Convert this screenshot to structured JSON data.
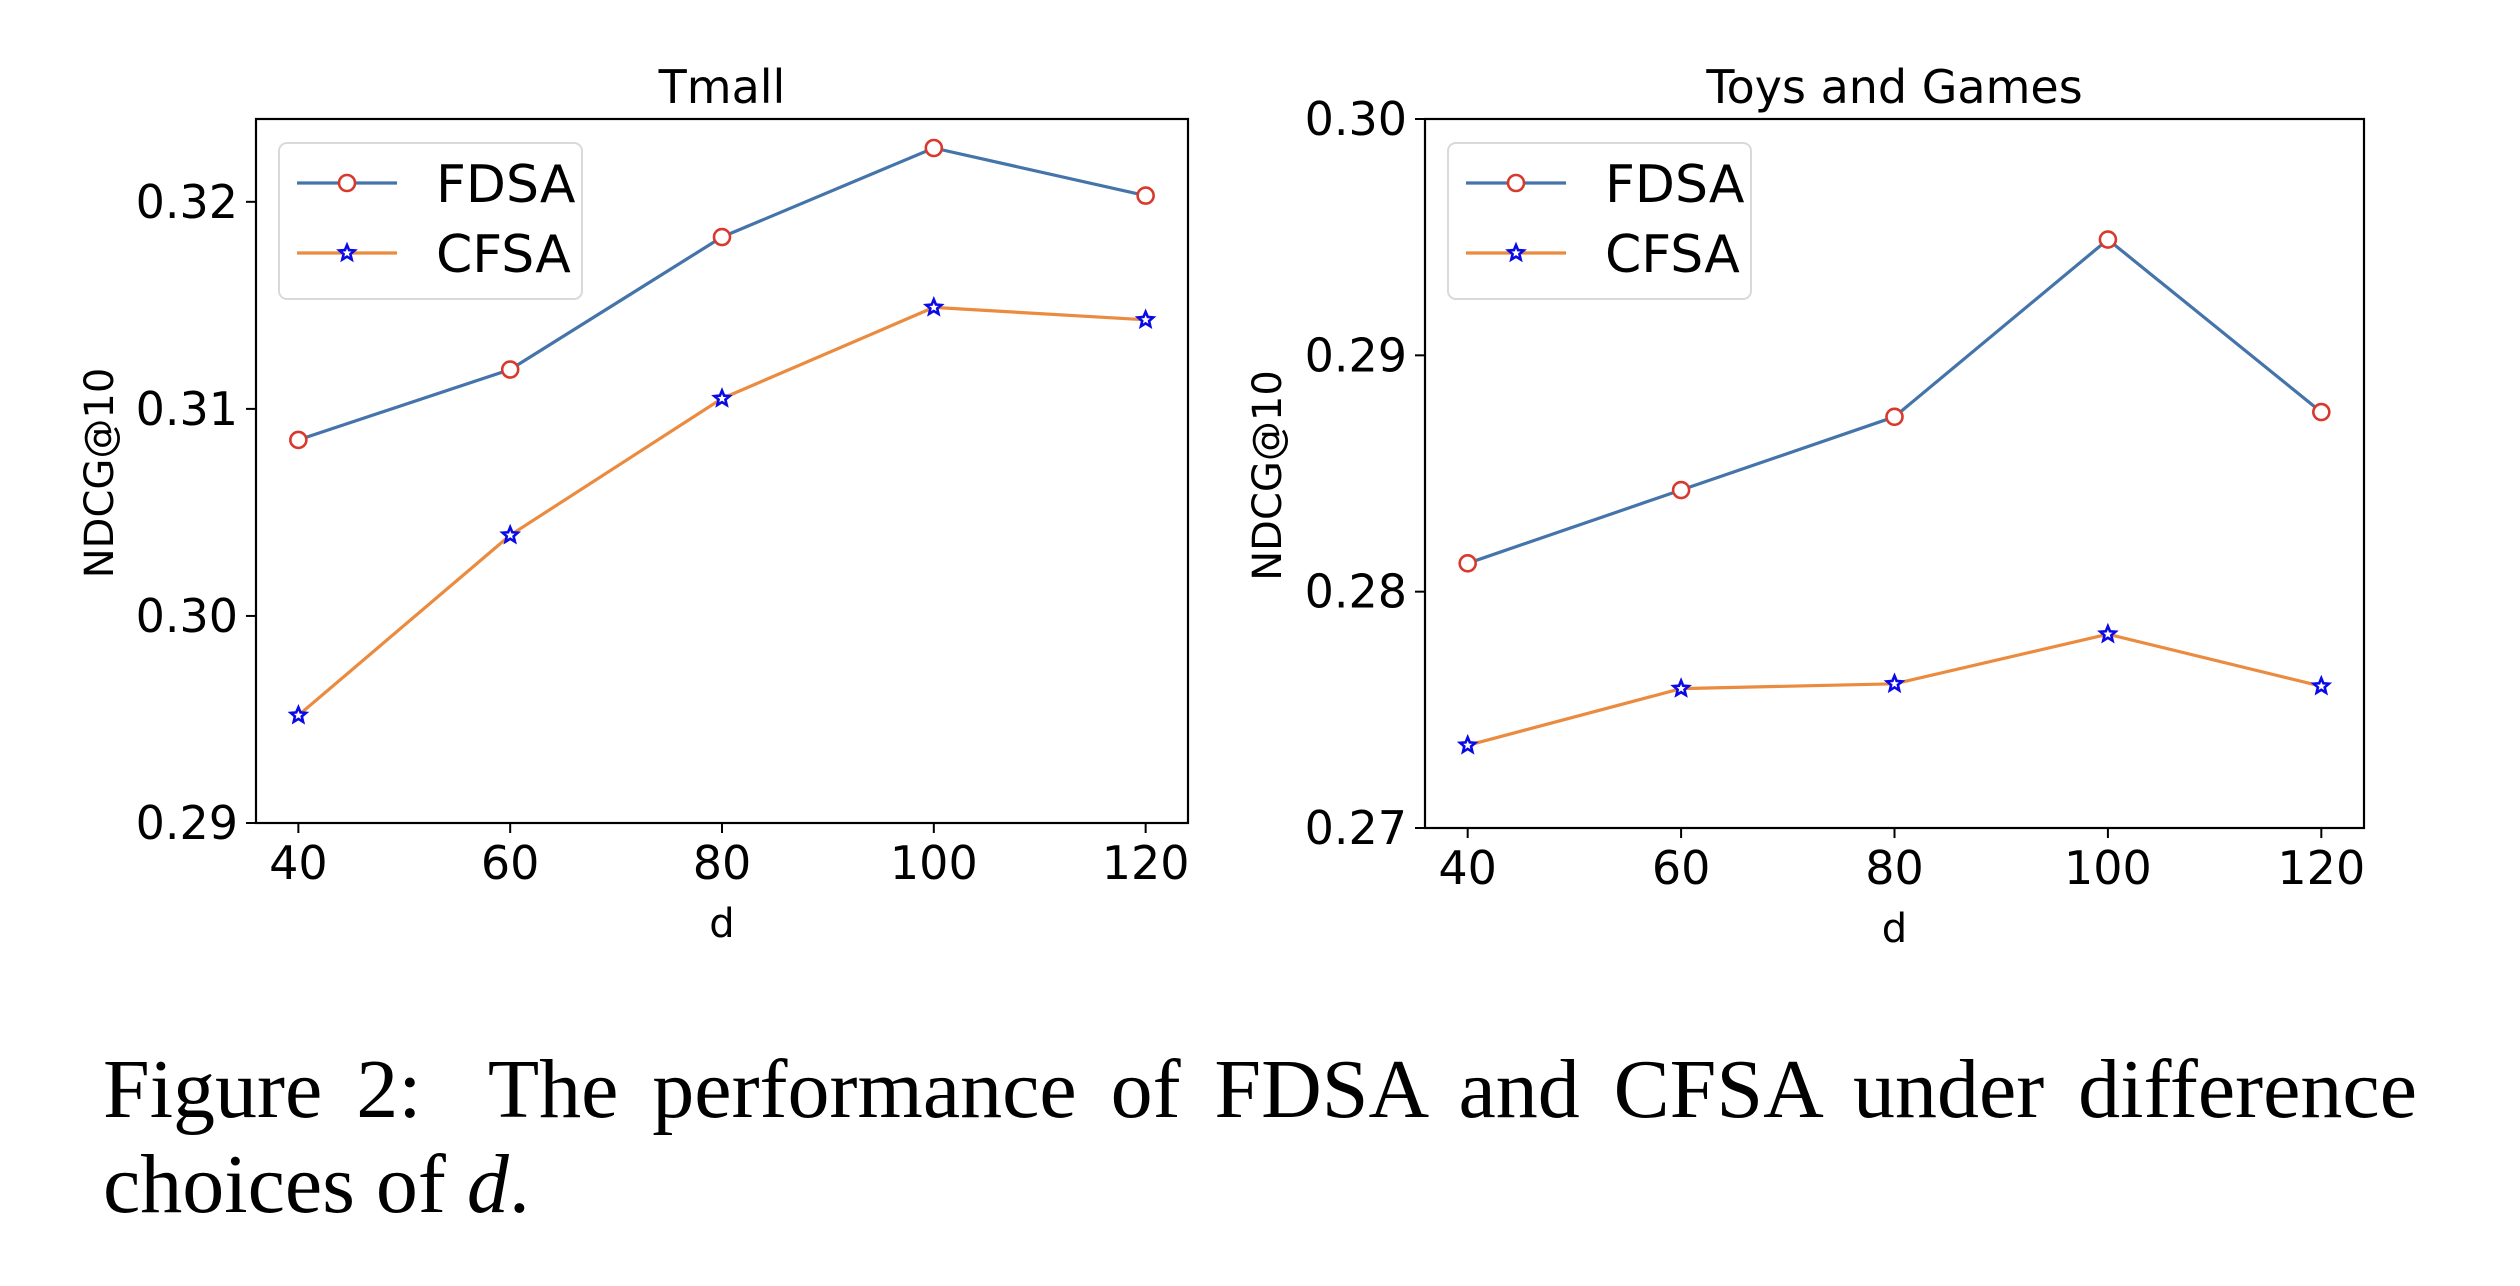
{
  "caption": {
    "prefix": "Figure 2:",
    "text": "The performance of FDSA and CFSA under difference choices of",
    "variable": "d",
    "suffix": "."
  },
  "colors": {
    "FDSA_line": "#4474a9",
    "FDSA_marker_edge": "#d9392c",
    "CFSA_line": "#ea8b3f",
    "CFSA_marker_edge": "#0a0ae6",
    "axes": "#000000",
    "legend_border": "#d9d9d9"
  },
  "chart_data": [
    {
      "type": "line",
      "title": "Tmall",
      "xlabel": "d",
      "ylabel": "NDCG@10",
      "x": [
        40,
        60,
        80,
        100,
        120
      ],
      "xticks": [
        "40",
        "60",
        "80",
        "100",
        "120"
      ],
      "yticks": [
        "0.29",
        "0.30",
        "0.31",
        "0.32"
      ],
      "ytick_values": [
        0.29,
        0.3,
        0.31,
        0.32
      ],
      "xlim": [
        36,
        124
      ],
      "ylim": [
        0.29,
        0.324
      ],
      "grid": false,
      "legend_position": "upper-left",
      "series": [
        {
          "name": "FDSA",
          "marker": "circle",
          "values": [
            0.3085,
            0.3119,
            0.3183,
            0.3226,
            0.3203
          ]
        },
        {
          "name": "CFSA",
          "marker": "star",
          "values": [
            0.2952,
            0.3039,
            0.3105,
            0.3149,
            0.3143
          ]
        }
      ]
    },
    {
      "type": "line",
      "title": "Toys and Games",
      "xlabel": "d",
      "ylabel": "NDCG@10",
      "x": [
        40,
        60,
        80,
        100,
        120
      ],
      "xticks": [
        "40",
        "60",
        "80",
        "100",
        "120"
      ],
      "yticks": [
        "0.27",
        "0.28",
        "0.29",
        "0.30"
      ],
      "ytick_values": [
        0.27,
        0.28,
        0.29,
        0.3
      ],
      "xlim": [
        36,
        124
      ],
      "ylim": [
        0.27,
        0.3
      ],
      "grid": false,
      "legend_position": "upper-left",
      "series": [
        {
          "name": "FDSA",
          "marker": "circle",
          "values": [
            0.2812,
            0.2843,
            0.2874,
            0.2949,
            0.2876
          ]
        },
        {
          "name": "CFSA",
          "marker": "star",
          "values": [
            0.2735,
            0.2759,
            0.2761,
            0.2782,
            0.276
          ]
        }
      ]
    }
  ]
}
